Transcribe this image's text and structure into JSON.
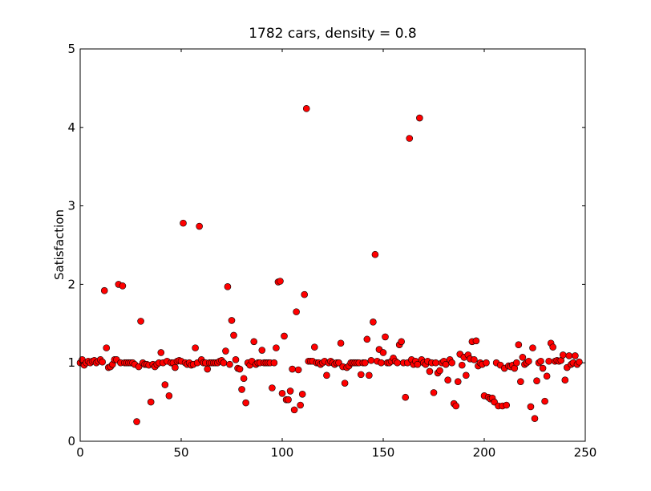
{
  "chart_data": {
    "type": "scatter",
    "title": "1782 cars, density = 0.8",
    "ylabel": "Satisfaction",
    "color": "#ff0000",
    "xlim": [
      0,
      250
    ],
    "xticks": [
      0,
      50,
      100,
      150,
      200,
      250
    ],
    "ylim": [
      0,
      5
    ],
    "yticks": [
      0,
      1,
      2,
      3,
      4,
      5
    ],
    "x": [
      0,
      1,
      2,
      3,
      4,
      5,
      6,
      7,
      8,
      9,
      10,
      11,
      12,
      13,
      14,
      15,
      16,
      17,
      18,
      19,
      20,
      21,
      22,
      23,
      24,
      25,
      26,
      27,
      28,
      29,
      30,
      31,
      32,
      33,
      34,
      35,
      36,
      37,
      38,
      39,
      40,
      41,
      42,
      43,
      44,
      45,
      46,
      47,
      48,
      49,
      50,
      51,
      52,
      53,
      54,
      55,
      56,
      57,
      58,
      59,
      60,
      61,
      62,
      63,
      64,
      65,
      66,
      67,
      68,
      69,
      70,
      71,
      72,
      73,
      74,
      75,
      76,
      77,
      78,
      79,
      80,
      81,
      82,
      83,
      84,
      85,
      86,
      87,
      88,
      89,
      90,
      91,
      92,
      93,
      94,
      95,
      96,
      97,
      98,
      99,
      100,
      101,
      102,
      103,
      104,
      105,
      106,
      107,
      108,
      109,
      110,
      111,
      112,
      113,
      114,
      115,
      116,
      117,
      118,
      119,
      120,
      121,
      122,
      123,
      124,
      125,
      126,
      127,
      128,
      129,
      130,
      131,
      132,
      133,
      134,
      135,
      136,
      137,
      138,
      139,
      140,
      141,
      142,
      143,
      144,
      145,
      146,
      147,
      148,
      149,
      150,
      151,
      152,
      153,
      154,
      155,
      156,
      157,
      158,
      159,
      160,
      161,
      162,
      163,
      164,
      165,
      166,
      167,
      168,
      169,
      170,
      171,
      172,
      173,
      174,
      175,
      176,
      177,
      178,
      179,
      180,
      181,
      182,
      183,
      184,
      185,
      186,
      187,
      188,
      189,
      190,
      191,
      192,
      193,
      194,
      195,
      196,
      197,
      198,
      199,
      200,
      201,
      202,
      203,
      204,
      205,
      206,
      207,
      208,
      209,
      210,
      211,
      212,
      213,
      214,
      215,
      216,
      217,
      218,
      219,
      220,
      221,
      222,
      223,
      224,
      225,
      226,
      227,
      228,
      229,
      230,
      231,
      232,
      233,
      234,
      235,
      236,
      237,
      238,
      239,
      240,
      241,
      242,
      243,
      244,
      245,
      246,
      247
    ],
    "y": [
      1.0,
      1.04,
      0.97,
      1.0,
      1.02,
      1.0,
      1.02,
      1.03,
      1.0,
      1.02,
      1.04,
      1.01,
      1.92,
      1.19,
      0.94,
      0.95,
      0.98,
      1.04,
      1.04,
      2.0,
      1.0,
      1.98,
      1.0,
      1.0,
      1.0,
      1.0,
      1.0,
      0.98,
      0.25,
      0.95,
      1.53,
      1.0,
      0.98,
      0.98,
      0.97,
      0.5,
      0.98,
      0.95,
      0.98,
      1.0,
      1.13,
      1.0,
      0.72,
      1.02,
      0.58,
      1.0,
      1.0,
      0.94,
      1.02,
      1.03,
      1.02,
      2.78,
      1.0,
      0.98,
      1.0,
      0.97,
      0.98,
      1.19,
      1.0,
      2.74,
      1.04,
      1.0,
      1.0,
      0.92,
      1.0,
      1.0,
      1.0,
      1.0,
      1.0,
      1.02,
      1.03,
      1.0,
      1.15,
      1.97,
      0.98,
      1.54,
      1.35,
      1.04,
      0.93,
      0.92,
      0.66,
      0.8,
      0.49,
      1.0,
      0.97,
      1.02,
      1.27,
      0.98,
      1.0,
      1.0,
      1.16,
      1.0,
      1.0,
      1.0,
      1.0,
      0.68,
      1.0,
      1.19,
      2.03,
      2.04,
      0.61,
      1.34,
      0.53,
      0.53,
      0.64,
      0.92,
      0.4,
      1.65,
      0.91,
      0.46,
      0.6,
      1.87,
      4.24,
      1.02,
      1.02,
      1.02,
      1.2,
      1.0,
      1.0,
      0.98,
      1.0,
      1.02,
      0.84,
      1.0,
      1.02,
      1.0,
      0.98,
      1.0,
      1.0,
      1.25,
      0.95,
      0.74,
      0.94,
      0.96,
      1.0,
      1.0,
      1.0,
      1.0,
      1.0,
      0.85,
      1.0,
      1.0,
      1.3,
      0.84,
      1.03,
      1.52,
      2.38,
      1.02,
      1.17,
      1.0,
      1.13,
      1.33,
      1.0,
      1.0,
      1.02,
      1.06,
      1.02,
      1.0,
      1.23,
      1.27,
      1.0,
      0.56,
      1.0,
      3.86,
      1.04,
      0.98,
      1.02,
      0.98,
      4.12,
      1.04,
      1.0,
      0.98,
      1.02,
      0.89,
      1.0,
      0.62,
      1.0,
      0.87,
      0.9,
      1.0,
      1.02,
      0.98,
      0.78,
      1.04,
      1.0,
      0.48,
      0.45,
      0.76,
      1.11,
      0.97,
      1.07,
      0.84,
      1.1,
      1.05,
      1.27,
      1.04,
      1.28,
      0.96,
      1.0,
      0.98,
      0.58,
      1.0,
      0.56,
      0.54,
      0.55,
      0.5,
      1.0,
      0.45,
      0.97,
      0.45,
      0.93,
      0.46,
      0.96,
      0.95,
      0.97,
      0.93,
      1.0,
      1.23,
      0.76,
      1.07,
      0.98,
      1.0,
      1.02,
      0.44,
      1.19,
      0.29,
      0.77,
      1.0,
      1.02,
      0.93,
      0.51,
      0.83,
      1.02,
      1.25,
      1.2,
      1.02,
      1.03,
      1.02,
      1.03,
      1.1,
      0.78,
      0.94,
      1.09,
      0.98,
      1.0,
      1.09,
      0.98,
      1.01
    ]
  }
}
